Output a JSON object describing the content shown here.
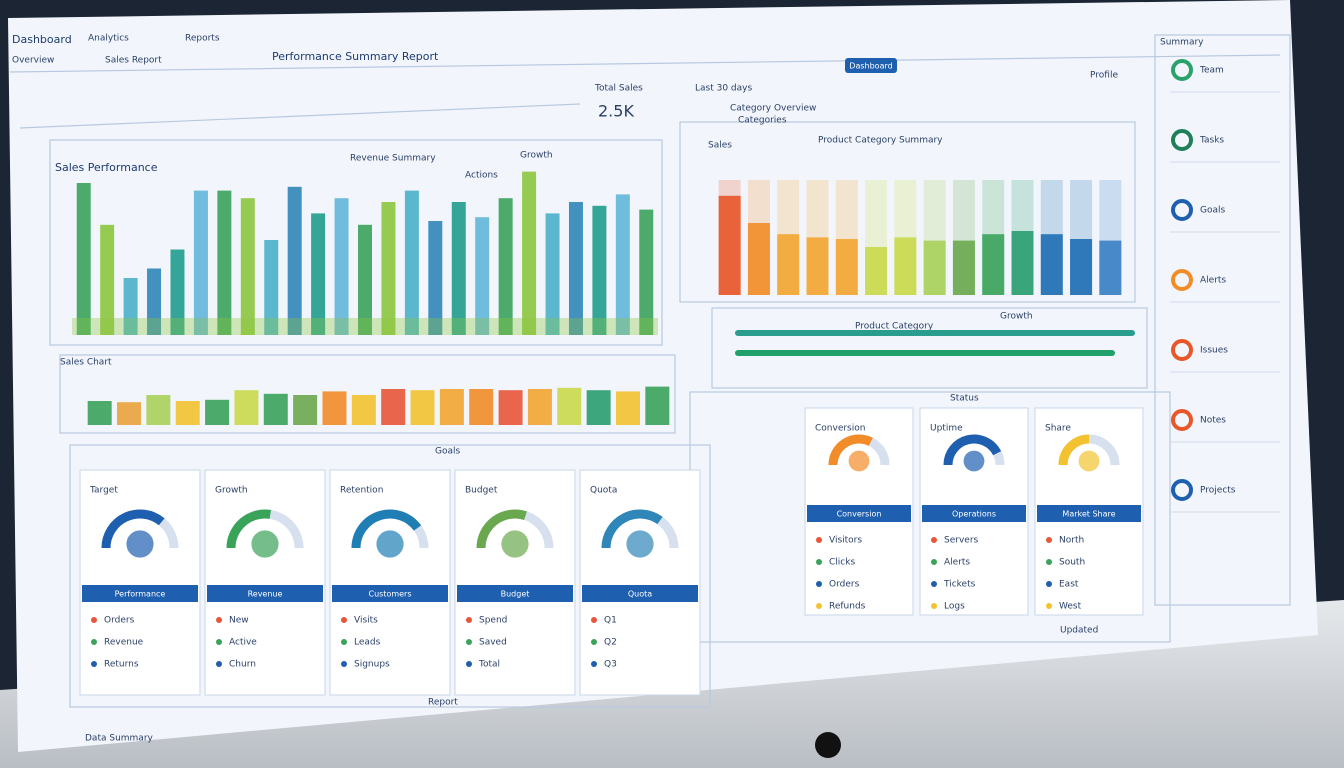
{
  "header": {
    "brand": "Dashboard",
    "menu": [
      "Analytics",
      "Reports"
    ],
    "tabs": [
      "Overview",
      "Sales Report"
    ],
    "subtitle": "Performance Summary Report",
    "button": "Dashboard",
    "user": "Profile",
    "filter": "Last 30 days"
  },
  "kpi": {
    "label": "Total Sales",
    "value": "2.5K"
  },
  "sales_chart": {
    "title": "Sales Performance",
    "subtitle": "Revenue Summary",
    "legend": "Growth",
    "note": "Actions",
    "colors": [
      "#3aa35a",
      "#8cc63f",
      "#49b0c9",
      "#2f86b8",
      "#1f9c8c",
      "#62b6d8"
    ],
    "values": [
      80,
      58,
      30,
      35,
      45,
      76,
      76,
      72,
      50,
      78,
      64,
      72,
      58,
      70,
      76,
      60,
      70,
      62,
      72,
      86,
      64,
      70,
      68,
      74,
      66
    ]
  },
  "strip": {
    "title": "Sales Chart",
    "colors": [
      "#3aa35a",
      "#e9a23b",
      "#a8cf5a",
      "#f2c230",
      "#3aa35a",
      "#c9d94a",
      "#3aa35a",
      "#6aa84f",
      "#f28c28",
      "#f2c230",
      "#e8563a",
      "#f2c230",
      "#f2a531",
      "#f28c28",
      "#e8563a",
      "#f2a531",
      "#c9d94a",
      "#2a9d6f",
      "#f2c230",
      "#3aa35a"
    ],
    "values": [
      40,
      38,
      50,
      40,
      42,
      58,
      52,
      50,
      56,
      50,
      60,
      58,
      60,
      60,
      58,
      60,
      62,
      58,
      56,
      64
    ]
  },
  "category_chart": {
    "title": "Category Overview",
    "subtitle": "Categories",
    "label": "Sales",
    "chart_title": "Product Category Summary",
    "colors": [
      "#e8562a",
      "#f28c28",
      "#f2a531",
      "#f2a531",
      "#f2a531",
      "#c9d94a",
      "#c9d94a",
      "#a8cf5a",
      "#6aa84f",
      "#3aa35a",
      "#2a9d6f",
      "#1f6fb5",
      "#1f6fb5",
      "#3a7fc4"
    ],
    "values": [
      62,
      45,
      38,
      36,
      35,
      30,
      36,
      34,
      34,
      38,
      40,
      38,
      35,
      34
    ]
  },
  "progress": {
    "title": "Product Category",
    "label": "Growth",
    "colors": [
      "#2a9d8f",
      "#22a06b"
    ],
    "values": [
      100,
      95
    ]
  },
  "kpi_cards": {
    "title": "Goals",
    "items": [
      {
        "title": "Target",
        "value": 72,
        "color": "#1f5fb0",
        "button": "Performance",
        "rows": [
          "Orders",
          "Revenue",
          "Returns"
        ]
      },
      {
        "title": "Growth",
        "value": 55,
        "color": "#3aa35a",
        "button": "Revenue",
        "rows": [
          "New",
          "Active",
          "Churn"
        ]
      },
      {
        "title": "Retention",
        "value": 80,
        "color": "#1f7fb5",
        "button": "Customers",
        "rows": [
          "Visits",
          "Leads",
          "Signups"
        ]
      },
      {
        "title": "Budget",
        "value": 60,
        "color": "#6aa84f",
        "button": "Budget",
        "rows": [
          "Spend",
          "Saved",
          "Total"
        ]
      },
      {
        "title": "Quota",
        "value": 70,
        "color": "#2f86b8",
        "button": "Quota",
        "rows": [
          "Q1",
          "Q2",
          "Q3"
        ]
      }
    ]
  },
  "status_cards": {
    "title": "Status",
    "items": [
      {
        "title": "Conversion",
        "value": 65,
        "color": "#f28c28",
        "button": "Conversion",
        "rows": [
          "Visitors",
          "Clicks",
          "Orders",
          "Refunds"
        ]
      },
      {
        "title": "Uptime",
        "value": 85,
        "color": "#1f5fb0",
        "button": "Operations",
        "rows": [
          "Servers",
          "Alerts",
          "Tickets",
          "Logs"
        ]
      },
      {
        "title": "Share",
        "value": 50,
        "color": "#f2c230",
        "button": "Market Share",
        "rows": [
          "North",
          "South",
          "East",
          "West"
        ]
      }
    ]
  },
  "sidebar": {
    "title": "Summary",
    "items": [
      "Team",
      "Tasks",
      "Goals",
      "Alerts",
      "Issues",
      "Notes",
      "Projects"
    ]
  },
  "footer": {
    "left": "Data Summary",
    "center": "Report",
    "right": "Updated"
  }
}
